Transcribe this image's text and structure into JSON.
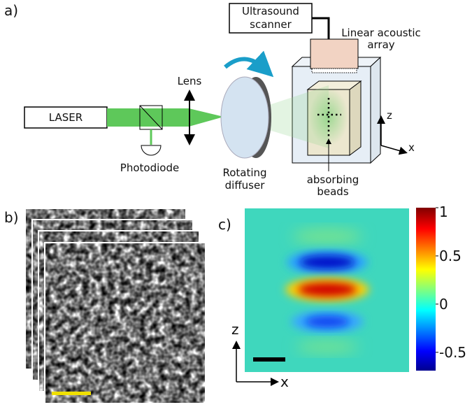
{
  "panel_a": {
    "label": "a)",
    "scanner": [
      "Ultrasound",
      "scanner"
    ],
    "array": [
      "Linear acoustic",
      "array"
    ],
    "lens": "Lens",
    "laser": "LASER",
    "photodiode": "Photodiode",
    "diffuser": [
      "Rotating",
      "diffuser"
    ],
    "beads": [
      "absorbing",
      "beads"
    ],
    "axis_z": "z",
    "axis_x": "x"
  },
  "panel_b": {
    "label": "b)"
  },
  "panel_c": {
    "label": "c)",
    "axis_z": "z",
    "axis_x": "x"
  },
  "colorbar": {
    "clim": [
      -0.69,
      1
    ],
    "ticks": [
      1,
      0.5,
      0,
      -0.5
    ]
  }
}
